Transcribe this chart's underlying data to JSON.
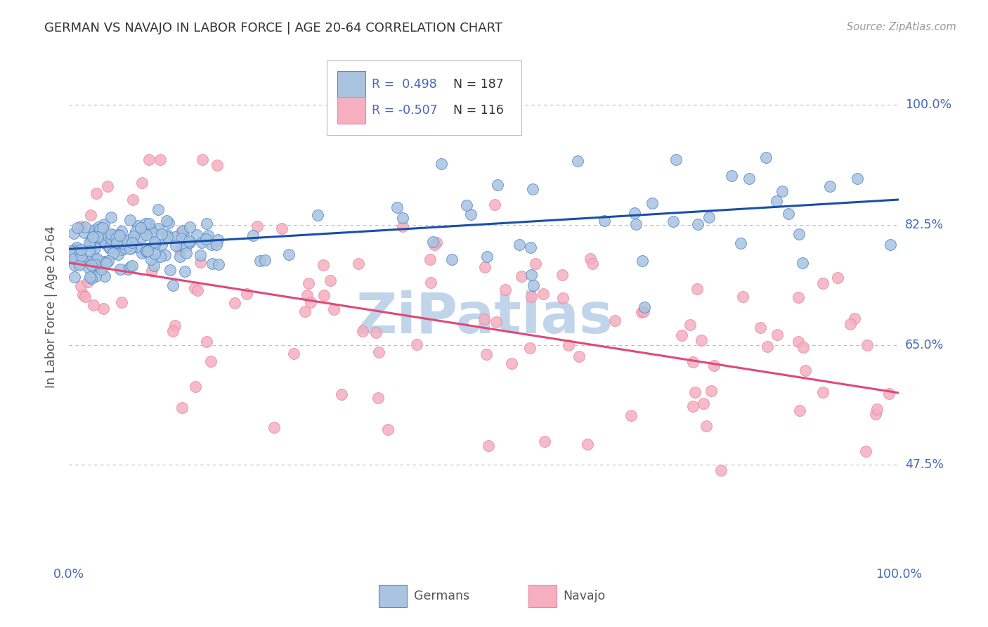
{
  "title": "GERMAN VS NAVAJO IN LABOR FORCE | AGE 20-64 CORRELATION CHART",
  "source_text": "Source: ZipAtlas.com",
  "ylabel": "In Labor Force | Age 20-64",
  "watermark": "ZiPatlas",
  "x_tick_labels": [
    "0.0%",
    "100.0%"
  ],
  "y_tick_labels": [
    "47.5%",
    "65.0%",
    "82.5%",
    "100.0%"
  ],
  "y_tick_values": [
    0.475,
    0.65,
    0.825,
    1.0
  ],
  "x_range": [
    0.0,
    1.0
  ],
  "y_range": [
    0.33,
    1.08
  ],
  "blue_R": 0.498,
  "blue_N": 187,
  "pink_R": -0.507,
  "pink_N": 116,
  "blue_line_start_x": 0.0,
  "blue_line_start_y": 0.79,
  "blue_line_end_x": 1.0,
  "blue_line_end_y": 0.862,
  "pink_line_start_x": 0.0,
  "pink_line_start_y": 0.77,
  "pink_line_end_x": 1.0,
  "pink_line_end_y": 0.58,
  "blue_scatter_color": "#a8c4e0",
  "blue_scatter_edge": "#5588cc",
  "pink_scatter_color": "#f5afc0",
  "pink_scatter_edge": "#e888a4",
  "blue_line_color": "#1a4fa8",
  "pink_line_color": "#e04878",
  "title_color": "#333333",
  "axis_label_color": "#555555",
  "tick_label_color": "#4466bb",
  "legend_R_color": "#4466bb",
  "legend_N_color": "#333333",
  "background_color": "#ffffff",
  "grid_color": "#bbbbbb",
  "watermark_color": "#c0d4ea",
  "legend_border_color": "#bbbbbb"
}
